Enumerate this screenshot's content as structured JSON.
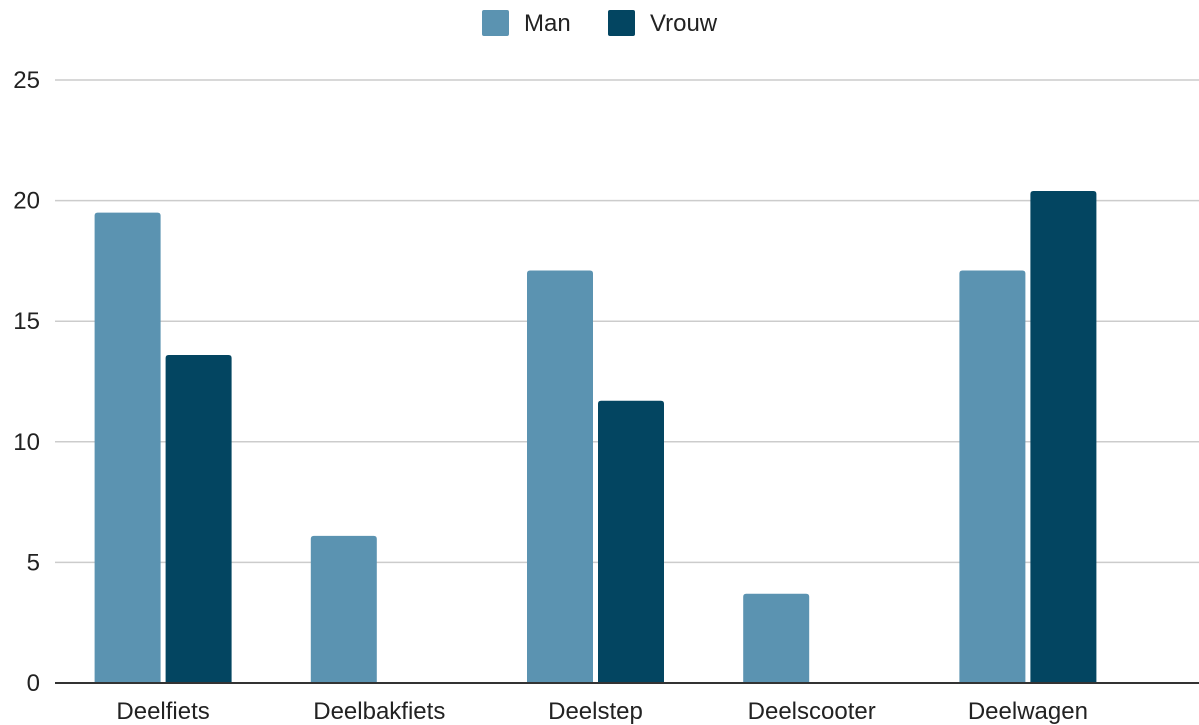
{
  "chart_data": {
    "type": "bar",
    "title": "",
    "xlabel": "",
    "ylabel": "",
    "categories": [
      "Deelfiets",
      "Deelbakfiets",
      "Deelstep",
      "Deelscooter",
      "Deelwagen"
    ],
    "series": [
      {
        "name": "Man",
        "values": [
          19.5,
          6.1,
          17.1,
          3.7,
          17.1
        ],
        "color": "#5b93b1"
      },
      {
        "name": "Vrouw",
        "values": [
          13.6,
          0,
          11.7,
          0,
          20.4
        ],
        "color": "#034561"
      }
    ],
    "ylim": [
      0,
      25
    ],
    "yticks": [
      "0",
      "5",
      "10",
      "15",
      "20",
      "25"
    ],
    "grid": true,
    "legend_position": "top-center"
  }
}
